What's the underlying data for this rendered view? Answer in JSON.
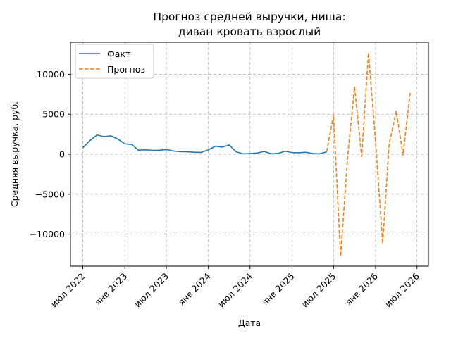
{
  "chart_data": {
    "type": "line",
    "title_lines": [
      "Прогноз средней выручки, ниша:",
      "диван кровать взрослый"
    ],
    "xlabel": "Дата",
    "ylabel": "Средняя выручка, руб.",
    "xlim": [
      "2022-05-08",
      "2026-08-20"
    ],
    "ylim": [
      -14000,
      14000
    ],
    "x_ticks": [
      {
        "date": "2022-07-01",
        "label": "июл 2022"
      },
      {
        "date": "2023-01-01",
        "label": "янв 2023"
      },
      {
        "date": "2023-07-01",
        "label": "июл 2023"
      },
      {
        "date": "2024-01-01",
        "label": "янв 2024"
      },
      {
        "date": "2024-07-01",
        "label": "июл 2024"
      },
      {
        "date": "2025-01-01",
        "label": "янв 2025"
      },
      {
        "date": "2025-07-01",
        "label": "июл 2025"
      },
      {
        "date": "2026-01-01",
        "label": "янв 2026"
      },
      {
        "date": "2026-07-01",
        "label": "июл 2026"
      }
    ],
    "y_ticks": [
      {
        "value": 10000,
        "label": "10000"
      },
      {
        "value": 5000,
        "label": "5000"
      },
      {
        "value": 0,
        "label": "0"
      },
      {
        "value": -5000,
        "label": "−5000"
      },
      {
        "value": -10000,
        "label": "−10000"
      }
    ],
    "grid": true,
    "legend_position": "top-left",
    "series": [
      {
        "name": "Факт",
        "color": "#1f77b4",
        "style": "solid",
        "points": [
          [
            "2022-07-01",
            800
          ],
          [
            "2022-08-01",
            1700
          ],
          [
            "2022-09-01",
            2400
          ],
          [
            "2022-10-01",
            2200
          ],
          [
            "2022-11-01",
            2300
          ],
          [
            "2022-12-01",
            1900
          ],
          [
            "2023-01-01",
            1300
          ],
          [
            "2023-02-01",
            1200
          ],
          [
            "2023-03-01",
            500
          ],
          [
            "2023-04-01",
            550
          ],
          [
            "2023-05-01",
            480
          ],
          [
            "2023-06-01",
            500
          ],
          [
            "2023-07-01",
            580
          ],
          [
            "2023-08-01",
            400
          ],
          [
            "2023-09-01",
            320
          ],
          [
            "2023-10-01",
            300
          ],
          [
            "2023-11-01",
            250
          ],
          [
            "2023-12-01",
            230
          ],
          [
            "2024-01-01",
            550
          ],
          [
            "2024-02-01",
            1000
          ],
          [
            "2024-03-01",
            880
          ],
          [
            "2024-04-01",
            1150
          ],
          [
            "2024-05-01",
            300
          ],
          [
            "2024-06-01",
            50
          ],
          [
            "2024-07-01",
            80
          ],
          [
            "2024-08-01",
            150
          ],
          [
            "2024-09-01",
            350
          ],
          [
            "2024-10-01",
            50
          ],
          [
            "2024-11-01",
            100
          ],
          [
            "2024-12-01",
            380
          ],
          [
            "2025-01-01",
            200
          ],
          [
            "2025-02-01",
            180
          ],
          [
            "2025-03-01",
            250
          ],
          [
            "2025-04-01",
            80
          ],
          [
            "2025-05-01",
            50
          ],
          [
            "2025-06-01",
            300
          ]
        ]
      },
      {
        "name": "Прогноз",
        "color": "#ff7f0e",
        "style": "dashed",
        "points": [
          [
            "2025-06-01",
            300
          ],
          [
            "2025-07-01",
            4900
          ],
          [
            "2025-08-01",
            -12800
          ],
          [
            "2025-09-01",
            -200
          ],
          [
            "2025-10-01",
            8400
          ],
          [
            "2025-11-01",
            -300
          ],
          [
            "2025-12-01",
            12700
          ],
          [
            "2026-01-01",
            1500
          ],
          [
            "2026-02-01",
            -11200
          ],
          [
            "2026-03-01",
            1200
          ],
          [
            "2026-04-01",
            5400
          ],
          [
            "2026-05-01",
            -100
          ],
          [
            "2026-06-01",
            7700
          ]
        ]
      }
    ]
  }
}
